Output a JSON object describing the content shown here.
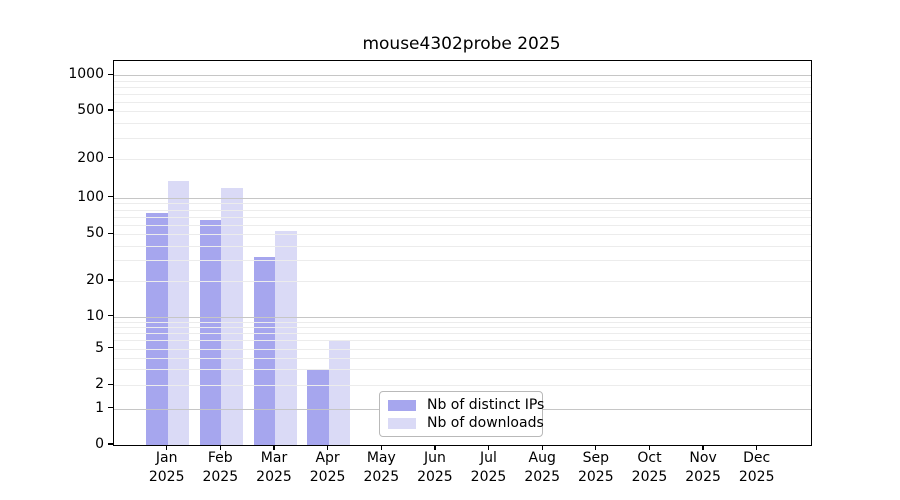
{
  "chart_data": {
    "type": "bar",
    "title": "mouse4302probe 2025",
    "categories": [
      "Jan",
      "Feb",
      "Mar",
      "Apr",
      "May",
      "Jun",
      "Jul",
      "Aug",
      "Sep",
      "Oct",
      "Nov",
      "Dec"
    ],
    "category_year": "2025",
    "series": [
      {
        "name": "Nb of distinct IPs",
        "color": "#a6a6ee",
        "values": [
          75,
          65,
          32,
          3,
          null,
          null,
          null,
          null,
          null,
          null,
          null,
          null
        ]
      },
      {
        "name": "Nb of downloads",
        "color": "#dadaf6",
        "values": [
          135,
          118,
          53,
          6,
          null,
          null,
          null,
          null,
          null,
          null,
          null,
          null
        ]
      }
    ],
    "xlabel": "",
    "ylabel": "",
    "y_ticks": [
      0,
      1,
      2,
      5,
      10,
      20,
      50,
      100,
      200,
      500,
      1000
    ],
    "y_scale": "symlog",
    "ylim": [
      0,
      1400
    ],
    "grid": true,
    "grid_over_bars": true,
    "legend_position": "lower-center",
    "colors": {
      "major_grid": "#c6c6c6",
      "minor_grid": "#ececec",
      "axis": "#000000",
      "background": "#ffffff"
    }
  }
}
